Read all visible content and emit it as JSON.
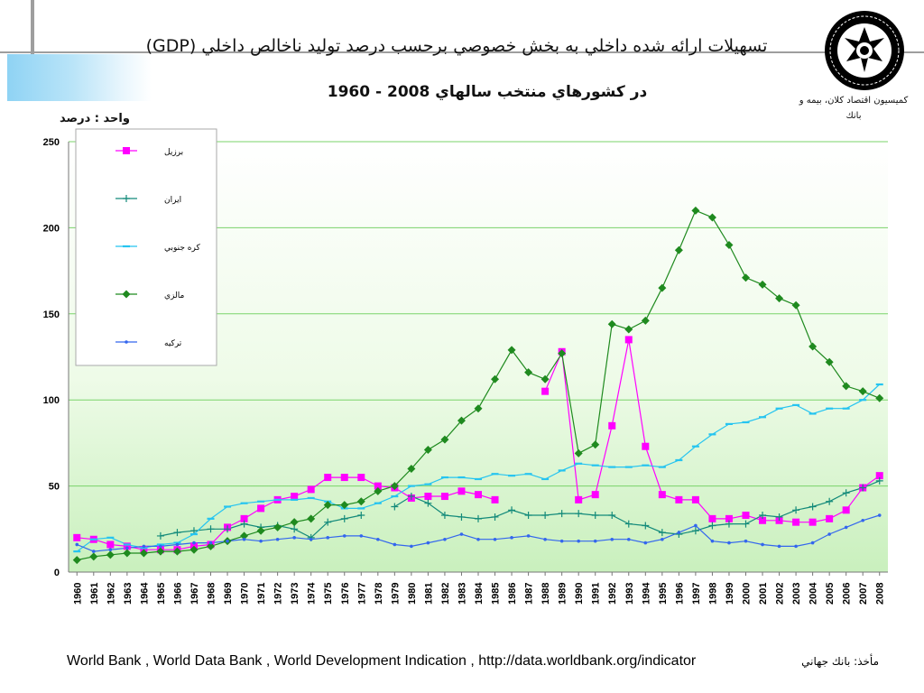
{
  "header": {
    "title": "تسهيلات ارائه شده داخلي به بخش خصوصي برحسب درصد توليد ناخالص داخلي  (GDP)",
    "subtitle": "در كشورهاي منتخب سالهاي 2008 - 1960",
    "organization": "كميسيون اقتصاد كلان، بيمه و بانك",
    "unit_label": "واحد : درصد"
  },
  "footer": {
    "source_text": "World Bank , World Data Bank , World Development Indication , http://data.worldbank.org/indicator",
    "source_label": "مأخذ: بانك جهاني"
  },
  "chart_data": {
    "type": "line",
    "title": "",
    "xlabel": "",
    "ylabel": "",
    "ylim": [
      0,
      250
    ],
    "yticks": [
      0,
      50,
      100,
      150,
      200,
      250
    ],
    "grid": true,
    "legend": "top-left",
    "x": [
      "1960",
      "1961",
      "1962",
      "1963",
      "1964",
      "1965",
      "1966",
      "1967",
      "1968",
      "1969",
      "1970",
      "1971",
      "1972",
      "1973",
      "1974",
      "1975",
      "1976",
      "1977",
      "1978",
      "1979",
      "1980",
      "1981",
      "1982",
      "1983",
      "1984",
      "1985",
      "1986",
      "1987",
      "1988",
      "1989",
      "1990",
      "1991",
      "1992",
      "1993",
      "1994",
      "1995",
      "1996",
      "1997",
      "1998",
      "1999",
      "2000",
      "2001",
      "2002",
      "2003",
      "2004",
      "2005",
      "2006",
      "2007",
      "2008"
    ],
    "series": [
      {
        "name": "برزيل",
        "color": "#ff00ff",
        "marker": "square",
        "values": [
          20,
          19,
          16,
          15,
          13,
          13,
          13,
          15,
          16,
          26,
          31,
          37,
          42,
          44,
          48,
          55,
          55,
          55,
          50,
          49,
          43,
          44,
          44,
          47,
          45,
          42,
          null,
          null,
          105,
          128,
          42,
          45,
          85,
          135,
          73,
          45,
          42,
          42,
          31,
          31,
          33,
          30,
          30,
          29,
          29,
          31,
          36,
          49,
          56
        ]
      },
      {
        "name": "ايران",
        "color": "#138a7a",
        "marker": "plus",
        "values": [
          null,
          null,
          null,
          null,
          null,
          21,
          23,
          24,
          25,
          25,
          28,
          26,
          27,
          25,
          20,
          29,
          31,
          33,
          null,
          38,
          44,
          40,
          33,
          32,
          31,
          32,
          36,
          33,
          33,
          34,
          34,
          33,
          33,
          28,
          27,
          23,
          22,
          24,
          27,
          28,
          28,
          33,
          32,
          36,
          38,
          41,
          46,
          49,
          53
        ]
      },
      {
        "name": "كره جنوبي",
        "color": "#25c4f0",
        "marker": "dash",
        "values": [
          12,
          19,
          20,
          16,
          14,
          16,
          17,
          22,
          31,
          38,
          40,
          41,
          42,
          42,
          43,
          41,
          37,
          37,
          40,
          44,
          50,
          51,
          55,
          55,
          54,
          57,
          56,
          57,
          54,
          59,
          63,
          62,
          61,
          61,
          62,
          61,
          65,
          73,
          80,
          86,
          87,
          90,
          95,
          97,
          92,
          95,
          95,
          100,
          109
        ]
      },
      {
        "name": "مالزي",
        "color": "#1f8a1f",
        "marker": "diamond",
        "values": [
          7,
          9,
          10,
          11,
          11,
          12,
          12,
          13,
          15,
          18,
          21,
          24,
          26,
          29,
          31,
          39,
          39,
          41,
          47,
          50,
          60,
          71,
          77,
          88,
          95,
          112,
          129,
          116,
          112,
          127,
          69,
          74,
          144,
          141,
          146,
          165,
          187,
          210,
          206,
          190,
          171,
          167,
          159,
          155,
          131,
          122,
          108,
          105,
          101
        ]
      },
      {
        "name": "تركيه",
        "color": "#3366ee",
        "marker": "dot",
        "values": [
          16,
          12,
          13,
          14,
          15,
          15,
          16,
          17,
          17,
          18,
          19,
          18,
          19,
          20,
          19,
          20,
          21,
          21,
          19,
          16,
          15,
          17,
          19,
          22,
          19,
          19,
          20,
          21,
          19,
          18,
          18,
          18,
          19,
          19,
          17,
          19,
          23,
          27,
          18,
          17,
          18,
          16,
          15,
          15,
          17,
          22,
          26,
          30,
          33
        ]
      }
    ]
  }
}
